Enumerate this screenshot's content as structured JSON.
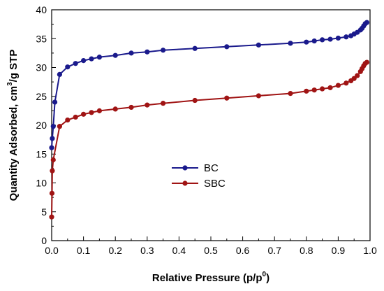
{
  "chart_data": {
    "type": "line",
    "xlabel": {
      "main": "Relative Pressure (p/p",
      "sup": "0",
      "tail": ")"
    },
    "ylabel": {
      "main": "Quantity Adsorbed, cm",
      "sup": "3",
      "tail": "/g STP"
    },
    "xlim": [
      0.0,
      1.0
    ],
    "ylim": [
      0,
      40
    ],
    "x_ticks": [
      "0.0",
      "0.1",
      "0.2",
      "0.3",
      "0.4",
      "0.5",
      "0.6",
      "0.7",
      "0.8",
      "0.9",
      "1.0"
    ],
    "y_ticks": [
      "0",
      "5",
      "10",
      "15",
      "20",
      "25",
      "30",
      "35",
      "40"
    ],
    "grid": false,
    "legend_position": "center",
    "series": [
      {
        "name": "BC",
        "color": "#1a1a8c",
        "x": [
          0.0,
          0.002,
          0.005,
          0.01,
          0.025,
          0.05,
          0.075,
          0.1,
          0.125,
          0.15,
          0.2,
          0.25,
          0.3,
          0.35,
          0.45,
          0.55,
          0.65,
          0.75,
          0.8,
          0.825,
          0.85,
          0.875,
          0.9,
          0.925,
          0.94,
          0.95,
          0.96,
          0.97,
          0.975,
          0.98,
          0.985,
          0.99
        ],
        "y": [
          16.1,
          17.7,
          19.8,
          24.0,
          28.8,
          30.1,
          30.7,
          31.2,
          31.5,
          31.8,
          32.1,
          32.5,
          32.7,
          33.0,
          33.3,
          33.6,
          33.9,
          34.2,
          34.4,
          34.6,
          34.8,
          34.9,
          35.1,
          35.3,
          35.5,
          35.8,
          36.1,
          36.5,
          36.8,
          37.2,
          37.6,
          37.8
        ]
      },
      {
        "name": "SBC",
        "color": "#a01414",
        "x": [
          0.0,
          0.001,
          0.002,
          0.005,
          0.025,
          0.05,
          0.075,
          0.1,
          0.125,
          0.15,
          0.2,
          0.25,
          0.3,
          0.35,
          0.45,
          0.55,
          0.65,
          0.75,
          0.8,
          0.825,
          0.85,
          0.875,
          0.9,
          0.925,
          0.94,
          0.95,
          0.96,
          0.97,
          0.975,
          0.98,
          0.985,
          0.99
        ],
        "y": [
          4.1,
          8.2,
          12.1,
          14.0,
          19.8,
          20.9,
          21.4,
          21.9,
          22.2,
          22.5,
          22.8,
          23.1,
          23.5,
          23.8,
          24.3,
          24.7,
          25.1,
          25.5,
          25.9,
          26.1,
          26.3,
          26.5,
          26.9,
          27.3,
          27.7,
          28.1,
          28.6,
          29.3,
          29.8,
          30.3,
          30.7,
          30.9
        ]
      }
    ]
  }
}
